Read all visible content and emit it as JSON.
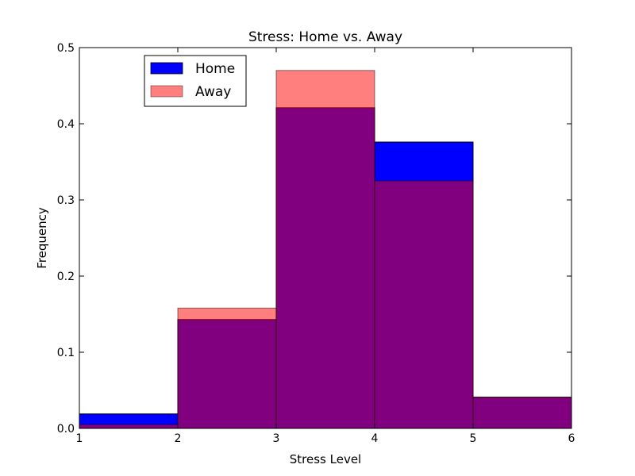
{
  "chart_data": {
    "type": "bar",
    "title": "Stress: Home vs. Away",
    "xlabel": "Stress Level",
    "ylabel": "Frequency",
    "xlim": [
      1,
      6
    ],
    "ylim": [
      0,
      0.5
    ],
    "bins": [
      [
        1,
        2
      ],
      [
        2,
        3
      ],
      [
        3,
        4
      ],
      [
        4,
        5
      ],
      [
        5,
        6
      ]
    ],
    "x_ticks": [
      "1",
      "2",
      "3",
      "4",
      "5",
      "6"
    ],
    "y_ticks": [
      "0.0",
      "0.1",
      "0.2",
      "0.3",
      "0.4",
      "0.5"
    ],
    "grid": false,
    "legend_position": "top-left",
    "series": [
      {
        "name": "Home",
        "color": "#0000ff",
        "alpha": 1.0,
        "values": [
          0.019,
          0.143,
          0.421,
          0.376,
          0.041
        ]
      },
      {
        "name": "Away",
        "color": "#ff0000",
        "alpha": 0.5,
        "values": [
          0.005,
          0.158,
          0.47,
          0.325,
          0.041
        ]
      }
    ]
  }
}
